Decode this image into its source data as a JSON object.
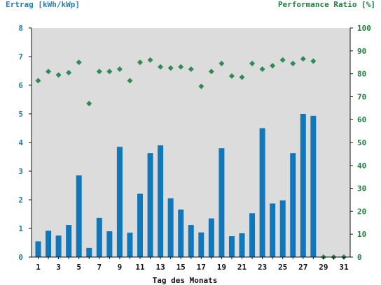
{
  "chart_data": {
    "type": "bar",
    "title": "",
    "xlabel": "Tag des Monats",
    "ylabel_left": "Ertrag [kWh/kWp]",
    "ylabel_right": "Performance Ratio [%]",
    "ylim_left": [
      0,
      8
    ],
    "ylim_right": [
      0,
      100
    ],
    "yticks_left": [
      "0",
      "1",
      "2",
      "3",
      "4",
      "5",
      "6",
      "7",
      "8"
    ],
    "yticks_right": [
      "0",
      "10",
      "20",
      "30",
      "40",
      "50",
      "60",
      "70",
      "80",
      "90",
      "100"
    ],
    "xticks": [
      "1",
      "3",
      "5",
      "7",
      "9",
      "11",
      "13",
      "15",
      "17",
      "19",
      "21",
      "23",
      "25",
      "27",
      "29",
      "31"
    ],
    "grid": false,
    "days": [
      1,
      2,
      3,
      4,
      5,
      6,
      7,
      8,
      9,
      10,
      11,
      12,
      13,
      14,
      15,
      16,
      17,
      18,
      19,
      20,
      21,
      22,
      23,
      24,
      25,
      26,
      27,
      28,
      29,
      30,
      31
    ],
    "series": [
      {
        "axis": "left",
        "mark": "bar",
        "values": [
          0.55,
          0.92,
          0.75,
          1.12,
          2.85,
          0.32,
          1.37,
          0.9,
          3.85,
          0.85,
          2.21,
          3.63,
          3.9,
          2.05,
          1.66,
          1.12,
          0.86,
          1.35,
          3.8,
          0.73,
          0.83,
          1.53,
          4.5,
          1.87,
          1.98,
          3.63,
          5.0,
          4.93,
          0,
          0,
          0
        ]
      },
      {
        "axis": "right",
        "mark": "diamond",
        "values": [
          77,
          81,
          79.5,
          80.5,
          85,
          67,
          81,
          81,
          82,
          77,
          85,
          86,
          83,
          82.5,
          83,
          82,
          74.5,
          81,
          84.5,
          79,
          78.5,
          84.5,
          82,
          83.5,
          86,
          84.5,
          86.5,
          85.5,
          0,
          0,
          0
        ]
      }
    ],
    "colors": {
      "bar": "#1177bb",
      "marker": "#2e8b57",
      "plot_bg": "#dcdcdc",
      "left_axis": "#1f7fb5",
      "right_axis": "#1e7f3e"
    }
  }
}
